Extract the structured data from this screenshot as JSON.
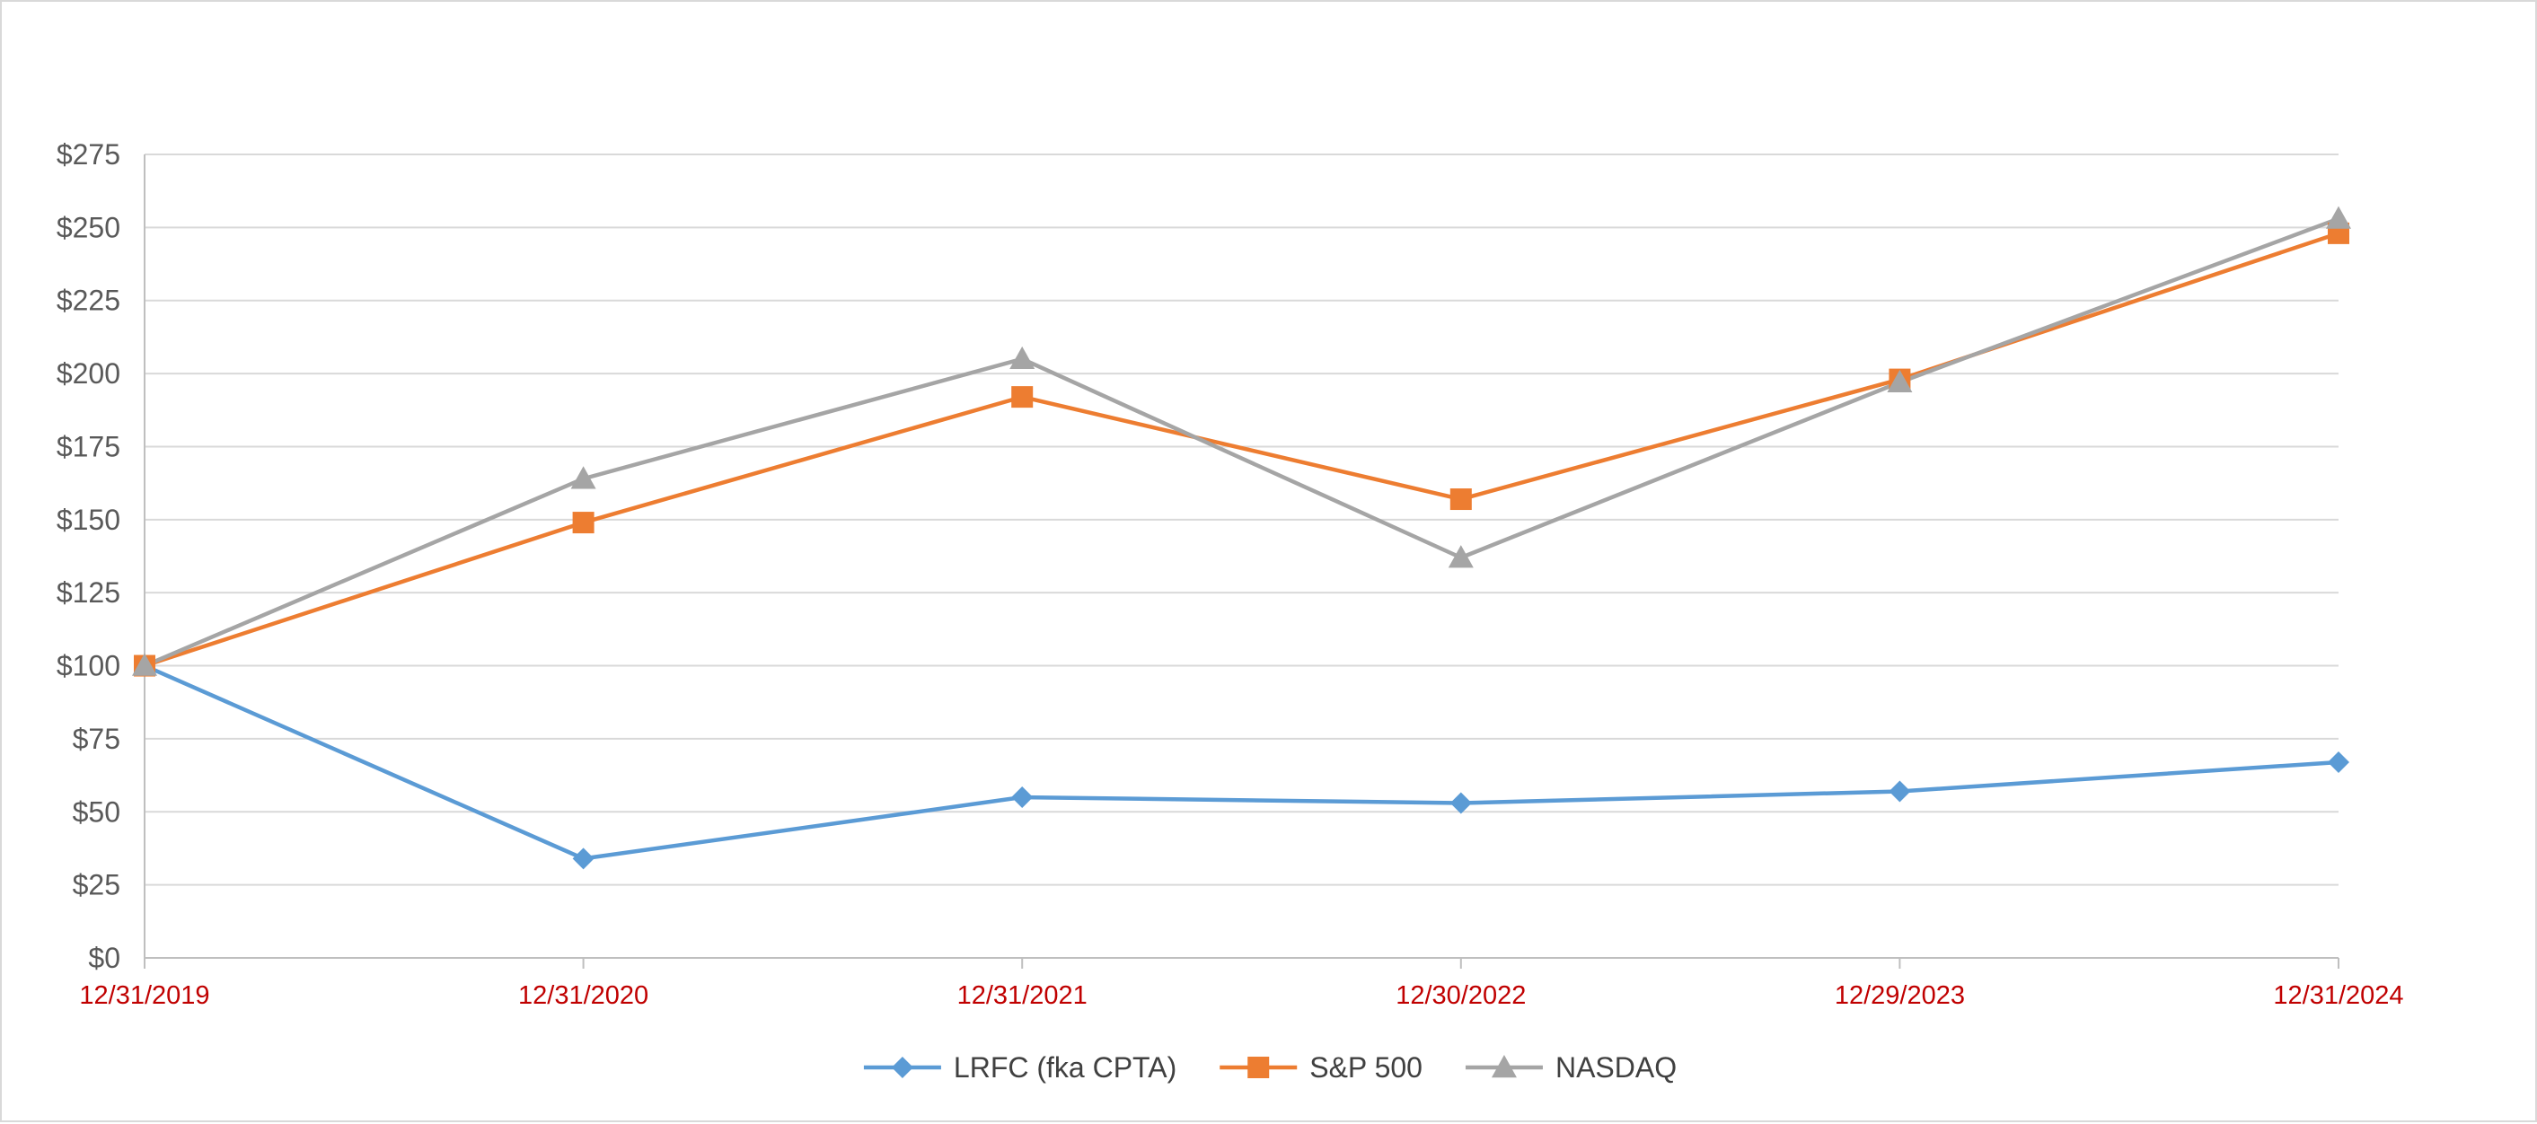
{
  "chart_data": {
    "type": "line",
    "title": "",
    "xlabel": "",
    "ylabel": "",
    "categories": [
      "12/31/2019",
      "12/31/2020",
      "12/31/2021",
      "12/30/2022",
      "12/29/2023",
      "12/31/2024"
    ],
    "ylim": [
      0,
      275
    ],
    "yticks": [
      0,
      25,
      50,
      75,
      100,
      125,
      150,
      175,
      200,
      225,
      250,
      275
    ],
    "ytick_labels": [
      "$0",
      "$25",
      "$50",
      "$75",
      "$100",
      "$125",
      "$150",
      "$175",
      "$200",
      "$225",
      "$250",
      "$275"
    ],
    "grid": true,
    "legend_position": "bottom",
    "xtick_color": "#c00000",
    "series": [
      {
        "name": "LRFC (fka CPTA)",
        "color": "#5b9bd5",
        "marker": "diamond",
        "values": [
          100,
          34,
          55,
          53,
          57,
          67
        ]
      },
      {
        "name": "S&P 500",
        "color": "#ed7d31",
        "marker": "square",
        "values": [
          100,
          149,
          192,
          157,
          198,
          248
        ]
      },
      {
        "name": "NASDAQ",
        "color": "#a5a5a5",
        "marker": "triangle",
        "values": [
          100,
          164,
          205,
          137,
          197,
          253
        ]
      }
    ]
  }
}
